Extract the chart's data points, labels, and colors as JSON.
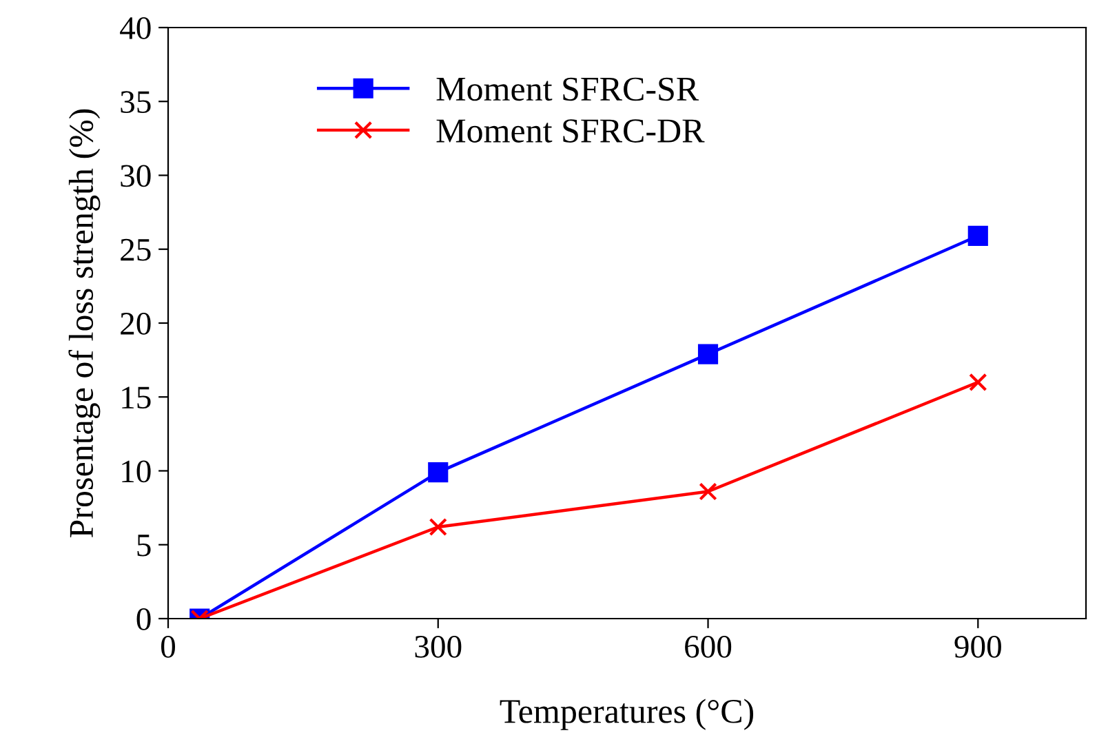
{
  "chart_data": {
    "type": "line",
    "xlabel": "Temperatures (°C)",
    "ylabel": "Prosentage of loss strength (%)",
    "x": [
      35,
      300,
      600,
      900
    ],
    "series": [
      {
        "name": "Moment SFRC-SR",
        "color": "#0000ff",
        "values": [
          0,
          9.9,
          17.9,
          25.9
        ],
        "marker": "square"
      },
      {
        "name": "Moment SFRC-DR",
        "color": "#ff0000",
        "values": [
          0,
          6.2,
          8.6,
          16.0
        ],
        "marker": "cross"
      }
    ],
    "xlim": [
      0,
      1020
    ],
    "xticks": [
      0,
      300,
      600,
      900
    ],
    "ylim": [
      0,
      40
    ],
    "yticks": [
      0,
      5,
      10,
      15,
      20,
      25,
      30,
      35,
      40
    ],
    "grid": false,
    "legend": "top left",
    "line_style": "solid"
  }
}
